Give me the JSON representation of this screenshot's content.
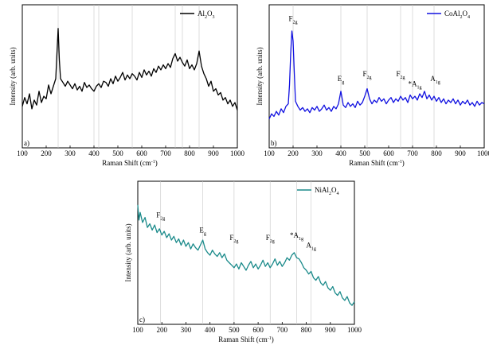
{
  "chart_data": [
    {
      "type": "line",
      "panel": "a)",
      "xlabel": "Raman Shift (cm",
      "xlabel_sup": "-1",
      "xlabel_end": ")",
      "ylabel": "Intensity (arb. units)",
      "xlim": [
        100,
        1000
      ],
      "xticks": [
        100,
        200,
        300,
        400,
        500,
        600,
        700,
        800,
        900,
        1000
      ],
      "vlines": [
        250,
        400,
        420,
        560,
        740,
        770,
        840
      ],
      "legend": {
        "main": "Al",
        "sub1": "2",
        "mid": "O",
        "sub2": "3"
      },
      "color": "#000000",
      "ylim": [
        0,
        100
      ],
      "series": [
        {
          "x": [
            100,
            110,
            120,
            130,
            140,
            150,
            160,
            170,
            180,
            190,
            200,
            210,
            220,
            230,
            240,
            245,
            250,
            255,
            260,
            270,
            280,
            290,
            300,
            310,
            320,
            330,
            340,
            350,
            360,
            370,
            380,
            390,
            400,
            410,
            420,
            430,
            440,
            450,
            460,
            470,
            480,
            490,
            500,
            510,
            520,
            530,
            540,
            550,
            560,
            570,
            580,
            590,
            600,
            610,
            620,
            630,
            640,
            650,
            660,
            670,
            680,
            690,
            700,
            710,
            720,
            730,
            740,
            750,
            760,
            770,
            780,
            790,
            800,
            810,
            820,
            830,
            840,
            850,
            860,
            870,
            880,
            890,
            900,
            910,
            920,
            930,
            940,
            950,
            960,
            970,
            980,
            990,
            1000
          ],
          "y": [
            28,
            35,
            30,
            38,
            26,
            33,
            29,
            40,
            31,
            36,
            34,
            45,
            38,
            44,
            50,
            70,
            90,
            65,
            50,
            47,
            44,
            48,
            45,
            42,
            46,
            41,
            44,
            40,
            47,
            43,
            45,
            42,
            40,
            44,
            46,
            43,
            48,
            47,
            44,
            50,
            46,
            52,
            48,
            51,
            55,
            49,
            53,
            50,
            54,
            52,
            49,
            55,
            51,
            57,
            53,
            56,
            52,
            58,
            55,
            60,
            57,
            61,
            58,
            62,
            59,
            66,
            70,
            64,
            67,
            63,
            60,
            65,
            58,
            61,
            57,
            62,
            72,
            60,
            54,
            50,
            44,
            48,
            40,
            42,
            37,
            39,
            33,
            35,
            30,
            33,
            28,
            31,
            25
          ]
        }
      ],
      "annotations": []
    },
    {
      "type": "line",
      "panel": "b)",
      "xlabel": "Raman Shift (cm",
      "xlabel_sup": "-1",
      "xlabel_end": ")",
      "ylabel": "Intensity (arb. units)",
      "xlim": [
        100,
        1000
      ],
      "xticks": [
        100,
        200,
        300,
        400,
        500,
        600,
        700,
        800,
        900,
        1000
      ],
      "vlines": [
        200,
        400,
        510,
        650,
        700,
        790
      ],
      "legend": {
        "main": "CoAl",
        "sub1": "2",
        "mid": "O",
        "sub2": "4"
      },
      "color": "#1010e0",
      "ylim": [
        0,
        100
      ],
      "series": [
        {
          "x": [
            100,
            110,
            120,
            130,
            140,
            150,
            160,
            170,
            180,
            185,
            190,
            195,
            200,
            205,
            210,
            220,
            230,
            240,
            250,
            260,
            270,
            280,
            290,
            300,
            310,
            320,
            330,
            340,
            350,
            360,
            370,
            380,
            390,
            400,
            410,
            420,
            430,
            440,
            450,
            460,
            470,
            480,
            490,
            500,
            510,
            520,
            530,
            540,
            550,
            560,
            570,
            580,
            590,
            600,
            610,
            620,
            630,
            640,
            650,
            660,
            670,
            680,
            690,
            700,
            710,
            720,
            730,
            740,
            750,
            760,
            770,
            780,
            790,
            800,
            810,
            820,
            830,
            840,
            850,
            860,
            870,
            880,
            890,
            900,
            910,
            920,
            930,
            940,
            950,
            960,
            970,
            980,
            990,
            1000
          ],
          "y": [
            18,
            22,
            20,
            24,
            21,
            26,
            23,
            28,
            30,
            45,
            70,
            88,
            80,
            55,
            32,
            28,
            25,
            27,
            24,
            26,
            23,
            27,
            25,
            28,
            24,
            26,
            29,
            25,
            27,
            24,
            28,
            26,
            30,
            40,
            29,
            27,
            31,
            28,
            30,
            27,
            32,
            29,
            31,
            36,
            42,
            34,
            30,
            33,
            31,
            35,
            32,
            34,
            30,
            33,
            35,
            31,
            34,
            32,
            36,
            33,
            35,
            31,
            37,
            34,
            36,
            33,
            38,
            35,
            40,
            34,
            37,
            33,
            36,
            32,
            35,
            31,
            34,
            30,
            33,
            31,
            34,
            30,
            33,
            29,
            32,
            30,
            33,
            29,
            31,
            28,
            32,
            29,
            31,
            30
          ]
        }
      ],
      "annotations": [
        {
          "x": 200,
          "y": 96,
          "t": "F",
          "s": "2g"
        },
        {
          "x": 400,
          "y": 48,
          "t": "E",
          "s": "g"
        },
        {
          "x": 510,
          "y": 52,
          "t": "F",
          "s": "2g"
        },
        {
          "x": 650,
          "y": 52,
          "t": "F",
          "s": "2g"
        },
        {
          "x": 710,
          "y": 44,
          "t": "*A",
          "s": "1g"
        },
        {
          "x": 795,
          "y": 48,
          "t": "A",
          "s": "1g"
        }
      ]
    },
    {
      "type": "line",
      "panel": "c)",
      "xlabel": "Raman Shift (cm",
      "xlabel_sup": "-1",
      "xlabel_end": ")",
      "ylabel": "Intensity (arb. units)",
      "xlim": [
        100,
        1000
      ],
      "xticks": [
        100,
        200,
        300,
        400,
        500,
        600,
        700,
        800,
        900,
        1000
      ],
      "vlines": [
        195,
        370,
        500,
        650,
        760,
        820
      ],
      "legend": {
        "main": "NiAl",
        "sub1": "2",
        "mid": "O",
        "sub2": "4"
      },
      "color": "#1a8a8a",
      "ylim": [
        0,
        100
      ],
      "series": [
        {
          "x": [
            100,
            105,
            110,
            120,
            130,
            140,
            150,
            160,
            170,
            180,
            190,
            200,
            210,
            220,
            230,
            240,
            250,
            260,
            270,
            280,
            290,
            300,
            310,
            320,
            330,
            340,
            350,
            360,
            370,
            380,
            390,
            400,
            410,
            420,
            430,
            440,
            450,
            460,
            470,
            480,
            490,
            500,
            510,
            520,
            530,
            540,
            550,
            560,
            570,
            580,
            590,
            600,
            610,
            620,
            630,
            640,
            650,
            660,
            670,
            680,
            690,
            700,
            710,
            720,
            730,
            740,
            750,
            760,
            770,
            780,
            790,
            800,
            810,
            820,
            830,
            840,
            850,
            860,
            870,
            880,
            890,
            900,
            910,
            920,
            930,
            940,
            950,
            960,
            970,
            980,
            990,
            1000
          ],
          "y": [
            90,
            78,
            84,
            76,
            80,
            72,
            75,
            70,
            74,
            68,
            71,
            66,
            69,
            64,
            67,
            62,
            65,
            60,
            63,
            58,
            62,
            57,
            60,
            55,
            59,
            56,
            54,
            58,
            62,
            55,
            52,
            50,
            54,
            51,
            49,
            52,
            48,
            51,
            46,
            44,
            42,
            40,
            43,
            39,
            44,
            41,
            38,
            42,
            45,
            40,
            43,
            39,
            42,
            46,
            41,
            44,
            40,
            43,
            47,
            42,
            45,
            41,
            44,
            48,
            46,
            50,
            52,
            48,
            47,
            44,
            40,
            38,
            35,
            37,
            32,
            30,
            33,
            28,
            26,
            29,
            24,
            22,
            25,
            20,
            18,
            21,
            16,
            14,
            17,
            12,
            10,
            13
          ]
        }
      ],
      "annotations": [
        {
          "x": 195,
          "y": 80,
          "t": "F",
          "s": "2g"
        },
        {
          "x": 370,
          "y": 68,
          "t": "E",
          "s": "g"
        },
        {
          "x": 500,
          "y": 62,
          "t": "F",
          "s": "2g"
        },
        {
          "x": 650,
          "y": 62,
          "t": "F",
          "s": "2g"
        },
        {
          "x": 760,
          "y": 64,
          "t": "*A",
          "s": "1g"
        },
        {
          "x": 820,
          "y": 56,
          "t": "A",
          "s": "1g"
        }
      ]
    }
  ]
}
